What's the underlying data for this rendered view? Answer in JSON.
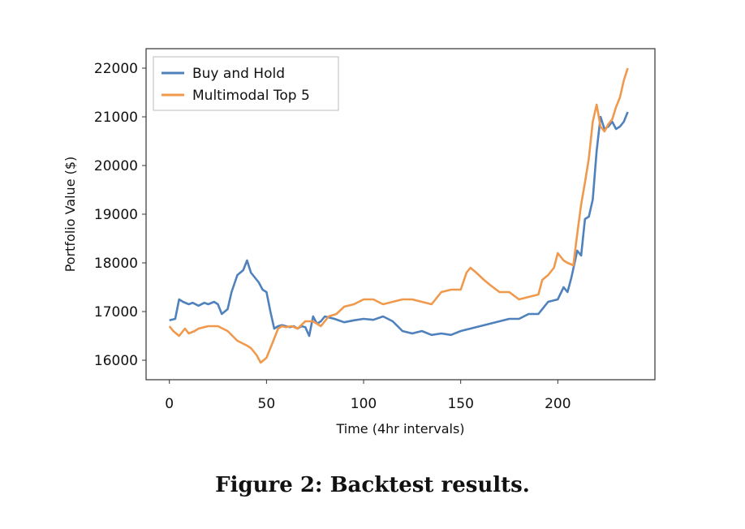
{
  "chart_data": {
    "type": "line",
    "xlabel": "Time (4hr intervals)",
    "ylabel": "Portfolio Value ($)",
    "xlim": [
      -12,
      250
    ],
    "ylim": [
      15600,
      22400
    ],
    "xticks": [
      0,
      50,
      100,
      150,
      200
    ],
    "yticks": [
      16000,
      17000,
      18000,
      19000,
      20000,
      21000,
      22000
    ],
    "grid": false,
    "legend": "top-left",
    "series": [
      {
        "name": "Buy and Hold",
        "color": "#4f81bd",
        "x": [
          0,
          3,
          5,
          7,
          10,
          12,
          15,
          18,
          20,
          23,
          25,
          27,
          30,
          32,
          35,
          38,
          40,
          42,
          44,
          46,
          48,
          50,
          52,
          54,
          56,
          58,
          60,
          62,
          64,
          66,
          68,
          70,
          72,
          74,
          76,
          78,
          80,
          85,
          90,
          95,
          100,
          105,
          110,
          115,
          120,
          125,
          130,
          135,
          140,
          145,
          150,
          155,
          160,
          165,
          170,
          175,
          180,
          185,
          190,
          195,
          200,
          203,
          205,
          207,
          210,
          212,
          214,
          216,
          218,
          220,
          222,
          224,
          226,
          228,
          230,
          232,
          234,
          236
        ],
        "y": [
          16820,
          16850,
          17250,
          17200,
          17150,
          17180,
          17120,
          17180,
          17150,
          17200,
          17150,
          16950,
          17050,
          17400,
          17750,
          17850,
          18050,
          17800,
          17700,
          17600,
          17450,
          17400,
          17000,
          16650,
          16700,
          16720,
          16700,
          16680,
          16700,
          16650,
          16700,
          16680,
          16500,
          16900,
          16750,
          16800,
          16900,
          16850,
          16780,
          16820,
          16850,
          16830,
          16900,
          16800,
          16600,
          16550,
          16600,
          16520,
          16550,
          16520,
          16600,
          16650,
          16700,
          16750,
          16800,
          16850,
          16850,
          16950,
          16950,
          17200,
          17250,
          17500,
          17400,
          17700,
          18250,
          18150,
          18900,
          18950,
          19300,
          20300,
          21000,
          20750,
          20800,
          20900,
          20750,
          20800,
          20900,
          21100
        ]
      },
      {
        "name": "Multimodal Top 5",
        "color": "#f0994d",
        "x": [
          0,
          2,
          5,
          8,
          10,
          13,
          15,
          20,
          25,
          30,
          35,
          40,
          42,
          45,
          47,
          50,
          53,
          56,
          58,
          60,
          63,
          66,
          70,
          74,
          78,
          82,
          86,
          90,
          95,
          100,
          105,
          110,
          115,
          120,
          125,
          130,
          135,
          140,
          145,
          150,
          153,
          155,
          158,
          162,
          165,
          170,
          175,
          180,
          185,
          190,
          192,
          195,
          198,
          200,
          203,
          205,
          208,
          210,
          212,
          214,
          216,
          218,
          220,
          222,
          224,
          226,
          228,
          230,
          232,
          234,
          236
        ],
        "y": [
          16700,
          16600,
          16500,
          16650,
          16550,
          16600,
          16650,
          16700,
          16700,
          16600,
          16400,
          16300,
          16250,
          16100,
          15950,
          16050,
          16350,
          16650,
          16700,
          16680,
          16700,
          16650,
          16800,
          16800,
          16700,
          16900,
          16950,
          17100,
          17150,
          17250,
          17250,
          17150,
          17200,
          17250,
          17250,
          17200,
          17150,
          17400,
          17450,
          17450,
          17800,
          17900,
          17800,
          17650,
          17550,
          17400,
          17400,
          17250,
          17300,
          17350,
          17650,
          17750,
          17900,
          18200,
          18050,
          18000,
          17950,
          18600,
          19200,
          19650,
          20150,
          20900,
          21250,
          20800,
          20700,
          20850,
          20950,
          21200,
          21400,
          21750,
          22000
        ]
      }
    ]
  },
  "caption": "Figure 2: Backtest results."
}
